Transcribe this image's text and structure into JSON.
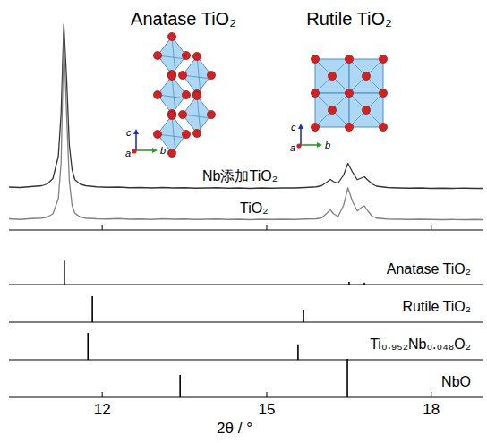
{
  "chart_data": {
    "type": "line",
    "xlabel": "2θ / °",
    "xlim": [
      10.3,
      18.95
    ],
    "xticks": [
      12,
      15,
      18
    ],
    "ylim": [
      0,
      100
    ],
    "tick_labels": "x",
    "x": [
      10.3,
      10.5,
      10.7,
      10.9,
      11.0,
      11.1,
      11.2,
      11.25,
      11.3,
      11.35,
      11.4,
      11.45,
      11.5,
      11.6,
      11.7,
      11.9,
      12.1,
      12.3,
      12.5,
      12.7,
      12.9,
      13.1,
      13.3,
      13.5,
      13.7,
      13.9,
      14.1,
      14.3,
      14.5,
      14.7,
      14.9,
      15.1,
      15.3,
      15.5,
      15.7,
      15.9,
      16.0,
      16.1,
      16.16,
      16.22,
      16.3,
      16.4,
      16.48,
      16.56,
      16.65,
      16.72,
      16.78,
      16.84,
      16.92,
      17.0,
      17.2,
      17.4,
      17.6,
      17.8,
      18.0,
      18.2,
      18.4,
      18.6,
      18.8,
      18.95
    ],
    "series": [
      {
        "name": "Nb添加TiO₂",
        "color": "#333333",
        "values": [
          19.2,
          19.0,
          19.4,
          19.8,
          20.6,
          23,
          33,
          52,
          92,
          68,
          38,
          27,
          22.5,
          20.5,
          19.8,
          19.3,
          19.1,
          19.2,
          18.9,
          19.0,
          18.8,
          19.0,
          18.8,
          18.9,
          18.7,
          18.8,
          18.9,
          18.7,
          18.8,
          18.6,
          18.8,
          18.7,
          18.8,
          18.8,
          19.0,
          19.3,
          19.8,
          21.5,
          22.6,
          21.6,
          21.0,
          24.5,
          29.8,
          26,
          22.5,
          23.2,
          23.8,
          22.4,
          20.6,
          19.6,
          19.0,
          18.8,
          18.7,
          18.8,
          18.6,
          18.7,
          18.6,
          18.7,
          18.6,
          18.6
        ]
      },
      {
        "name": "TiO₂",
        "color": "#808080",
        "values": [
          5.0,
          4.7,
          5.1,
          5.3,
          5.8,
          7.2,
          14,
          30,
          86,
          52,
          22,
          11,
          7.5,
          5.8,
          5.3,
          5.0,
          4.9,
          5.1,
          4.8,
          4.9,
          4.7,
          5.0,
          4.8,
          4.9,
          4.7,
          4.8,
          4.9,
          4.7,
          4.8,
          4.6,
          4.8,
          4.7,
          4.8,
          4.7,
          4.9,
          5.0,
          5.4,
          7.6,
          9.0,
          7.2,
          6.0,
          11,
          18.8,
          13,
          8.5,
          10,
          10.8,
          8.6,
          6.2,
          5.3,
          4.9,
          4.8,
          4.7,
          4.8,
          4.7,
          4.6,
          4.7,
          4.6,
          4.7,
          4.6
        ]
      }
    ],
    "reference_ylim": [
      0,
      100
    ],
    "references": [
      {
        "name": "Anatase TiO₂",
        "color": "#000000",
        "x": [
          11.31,
          16.5,
          16.78
        ],
        "values": [
          61,
          7,
          5
        ]
      },
      {
        "name": "Rutile TiO₂",
        "color": "#000000",
        "x": [
          11.82,
          15.67
        ],
        "values": [
          66,
          32
        ]
      },
      {
        "name": "Ti₀.₉₅₂Nb₀.₀₄₈O₂",
        "color": "#000000",
        "x": [
          11.74,
          15.57
        ],
        "values": [
          68,
          39
        ]
      },
      {
        "name": "NbO",
        "color": "#000000",
        "x": [
          13.42,
          16.47
        ],
        "values": [
          57,
          98
        ]
      }
    ],
    "structures": [
      {
        "label": "Anatase TiO₂",
        "axes": [
          "a",
          "b",
          "c"
        ]
      },
      {
        "label": "Rutile TiO₂",
        "axes": [
          "a",
          "b",
          "c"
        ]
      }
    ]
  }
}
